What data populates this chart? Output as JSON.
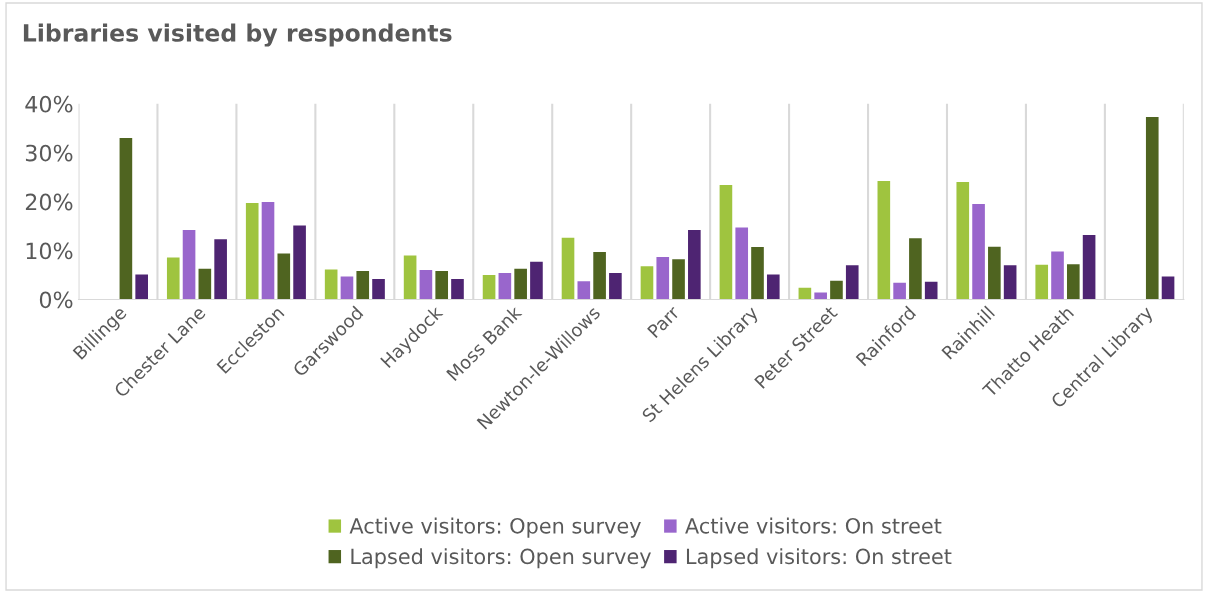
{
  "chart_data": {
    "type": "bar",
    "title": "Libraries visited by respondents",
    "categories": [
      "Billinge",
      "Chester Lane",
      "Eccleston",
      "Garswood",
      "Haydock",
      "Moss Bank",
      "Newton-le-Willows",
      "Parr",
      "St Helens Library",
      "Peter Street",
      "Rainford",
      "Rainhill",
      "Thatto Heath",
      "Central Library"
    ],
    "series": [
      {
        "name": "Active visitors: Open survey",
        "color": "#9fc43f",
        "values": [
          null,
          8.6,
          19.7,
          6.1,
          9.0,
          5.0,
          12.6,
          6.8,
          23.4,
          2.4,
          24.2,
          24.0,
          7.1,
          null
        ]
      },
      {
        "name": "Active visitors: On street",
        "color": "#9966cc",
        "values": [
          null,
          14.2,
          19.9,
          4.7,
          6.0,
          5.4,
          3.7,
          8.7,
          14.7,
          1.4,
          3.4,
          19.5,
          9.8,
          null
        ]
      },
      {
        "name": "Lapsed visitors: Open survey",
        "color": "#4f6420",
        "values": [
          33.0,
          6.3,
          9.4,
          5.8,
          5.8,
          6.3,
          9.7,
          8.2,
          10.7,
          3.8,
          12.5,
          10.8,
          7.2,
          37.3
        ]
      },
      {
        "name": "Lapsed visitors: On street",
        "color": "#4e2472",
        "values": [
          5.1,
          12.3,
          15.1,
          4.2,
          4.2,
          7.7,
          5.4,
          14.2,
          5.1,
          7.0,
          3.6,
          7.0,
          13.2,
          4.7
        ]
      }
    ],
    "ylim": [
      0,
      40
    ],
    "yticks": [
      {
        "value": 0,
        "label": "0%"
      },
      {
        "value": 10,
        "label": "10%"
      },
      {
        "value": 20,
        "label": "20%"
      },
      {
        "value": 30,
        "label": "30%"
      },
      {
        "value": 40,
        "label": "40%"
      }
    ],
    "grid": "x",
    "legend": "bottom"
  }
}
